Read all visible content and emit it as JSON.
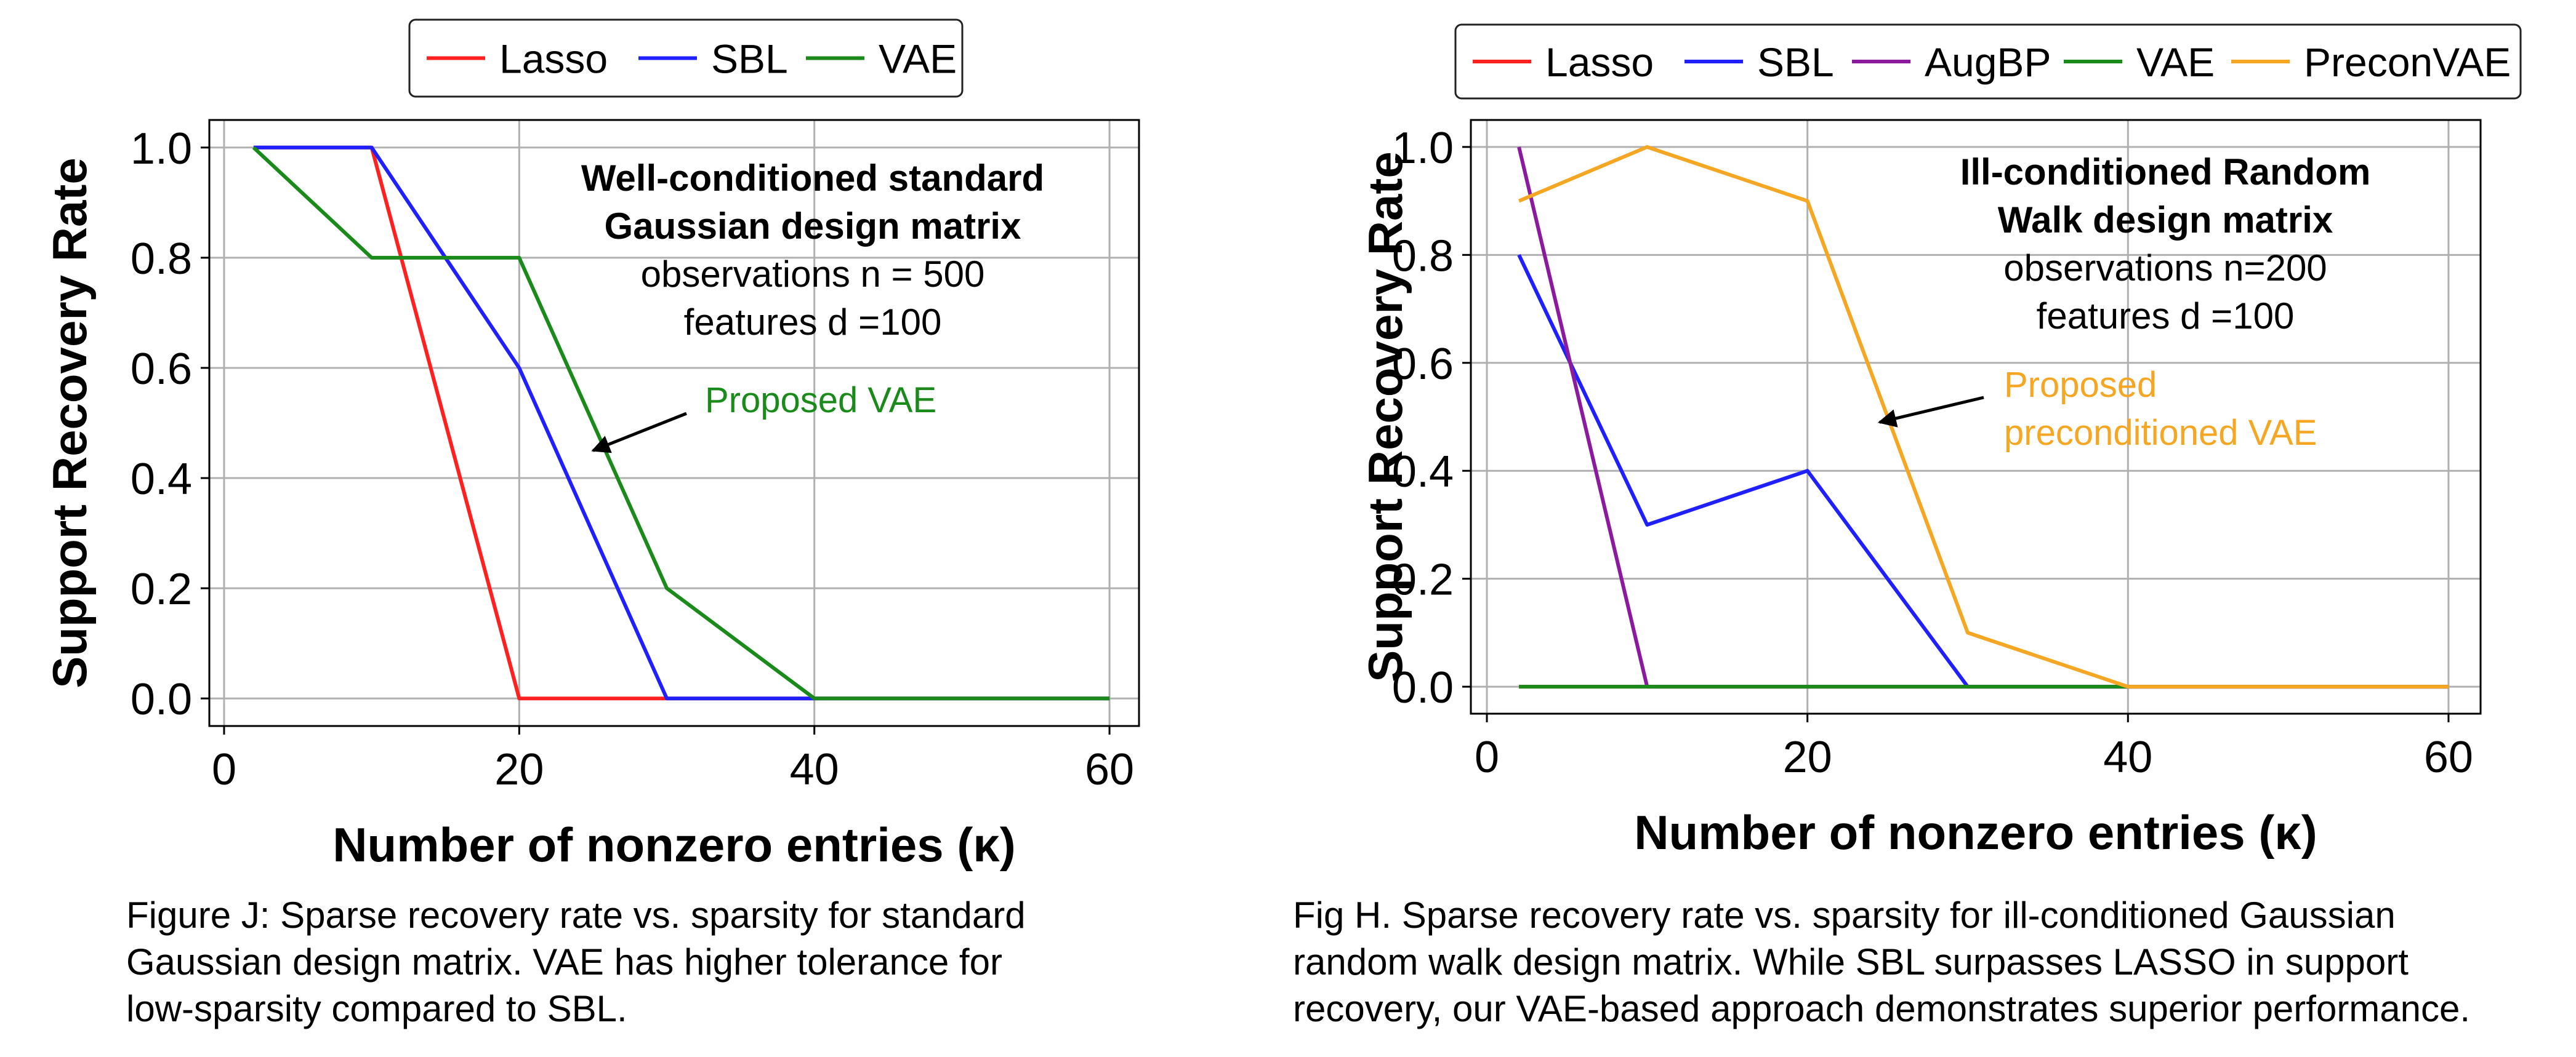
{
  "chart_data": [
    {
      "type": "line",
      "title": "",
      "xlabel": "Number of nonzero entries (κ)",
      "ylabel": "Support Recovery Rate",
      "xlim": [
        -1,
        62
      ],
      "ylim": [
        -0.05,
        1.05
      ],
      "xticks": [
        0,
        20,
        40,
        60
      ],
      "xtick_labels": [
        "0",
        "20",
        "40",
        "60"
      ],
      "yticks": [
        0.0,
        0.2,
        0.4,
        0.6,
        0.8,
        1.0
      ],
      "ytick_labels": [
        "0.0",
        "0.2",
        "0.4",
        "0.6",
        "0.8",
        "1.0"
      ],
      "grid": true,
      "legend_position": "top-center-outside",
      "series": [
        {
          "name": "Lasso",
          "color": "#ff2020",
          "x": [
            2,
            10,
            20,
            30,
            40,
            60
          ],
          "y": [
            1.0,
            1.0,
            0.0,
            0.0,
            0.0,
            0.0
          ]
        },
        {
          "name": "SBL",
          "color": "#2020ff",
          "x": [
            2,
            10,
            20,
            30,
            40,
            60
          ],
          "y": [
            1.0,
            1.0,
            0.6,
            0.0,
            0.0,
            0.0
          ]
        },
        {
          "name": "VAE",
          "color": "#1a8a1a",
          "x": [
            2,
            10,
            20,
            30,
            40,
            60
          ],
          "y": [
            1.0,
            0.8,
            0.8,
            0.2,
            0.0,
            0.0
          ]
        }
      ],
      "annotation_title_lines": [
        "Well-conditioned standard",
        "Gaussian design matrix"
      ],
      "annotation_body_lines": [
        "observations n = 500",
        "features d =100"
      ],
      "arrow_label": {
        "lines": [
          "Proposed VAE"
        ],
        "color": "#1a8a1a",
        "points_to": [
          25,
          0.45
        ]
      },
      "caption_lines": [
        "Figure J: Sparse recovery rate vs. sparsity for standard",
        "Gaussian design matrix. VAE has higher tolerance for",
        "low-sparsity compared to SBL."
      ]
    },
    {
      "type": "line",
      "title": "",
      "xlabel": "Number of nonzero entries (κ)",
      "ylabel": "Support Recovery Rate",
      "xlim": [
        -1,
        62
      ],
      "ylim": [
        -0.05,
        1.05
      ],
      "xticks": [
        0,
        20,
        40,
        60
      ],
      "xtick_labels": [
        "0",
        "20",
        "40",
        "60"
      ],
      "yticks": [
        0.0,
        0.2,
        0.4,
        0.6,
        0.8,
        1.0
      ],
      "ytick_labels": [
        "0.0",
        "0.2",
        "0.4",
        "0.6",
        "0.8",
        "1.0"
      ],
      "grid": true,
      "legend_position": "top-center-outside",
      "series": [
        {
          "name": "Lasso",
          "color": "#ff2020",
          "x": [
            2,
            10,
            20,
            30,
            40,
            60
          ],
          "y": [
            0.0,
            0.0,
            0.0,
            0.0,
            0.0,
            0.0
          ]
        },
        {
          "name": "SBL",
          "color": "#2020ff",
          "x": [
            2,
            10,
            20,
            30,
            40,
            60
          ],
          "y": [
            0.8,
            0.3,
            0.4,
            0.0,
            0.0,
            0.0
          ]
        },
        {
          "name": "AugBP",
          "color": "#8b1a9e",
          "x": [
            2,
            10,
            20,
            30,
            40,
            60
          ],
          "y": [
            1.0,
            0.0,
            0.0,
            0.0,
            0.0,
            0.0
          ]
        },
        {
          "name": "VAE",
          "color": "#1a8a1a",
          "x": [
            2,
            10,
            20,
            30,
            40,
            60
          ],
          "y": [
            0.0,
            0.0,
            0.0,
            0.0,
            0.0,
            0.0
          ]
        },
        {
          "name": "PreconVAE",
          "color": "#f5a623",
          "x": [
            2,
            10,
            20,
            30,
            40,
            60
          ],
          "y": [
            0.9,
            1.0,
            0.9,
            0.1,
            0.0,
            0.0
          ]
        }
      ],
      "annotation_title_lines": [
        "Ill-conditioned Random",
        "Walk design matrix"
      ],
      "annotation_body_lines": [
        "observations n=200",
        "features d =100"
      ],
      "arrow_label": {
        "lines": [
          "Proposed",
          "preconditioned VAE"
        ],
        "color": "#f5a623",
        "points_to": [
          24.5,
          0.49
        ]
      },
      "caption_lines": [
        "Fig H. Sparse recovery rate vs. sparsity for ill-conditioned Gaussian",
        "random walk design matrix. While SBL surpasses LASSO in support",
        "recovery, our VAE-based approach demonstrates superior performance."
      ]
    }
  ]
}
